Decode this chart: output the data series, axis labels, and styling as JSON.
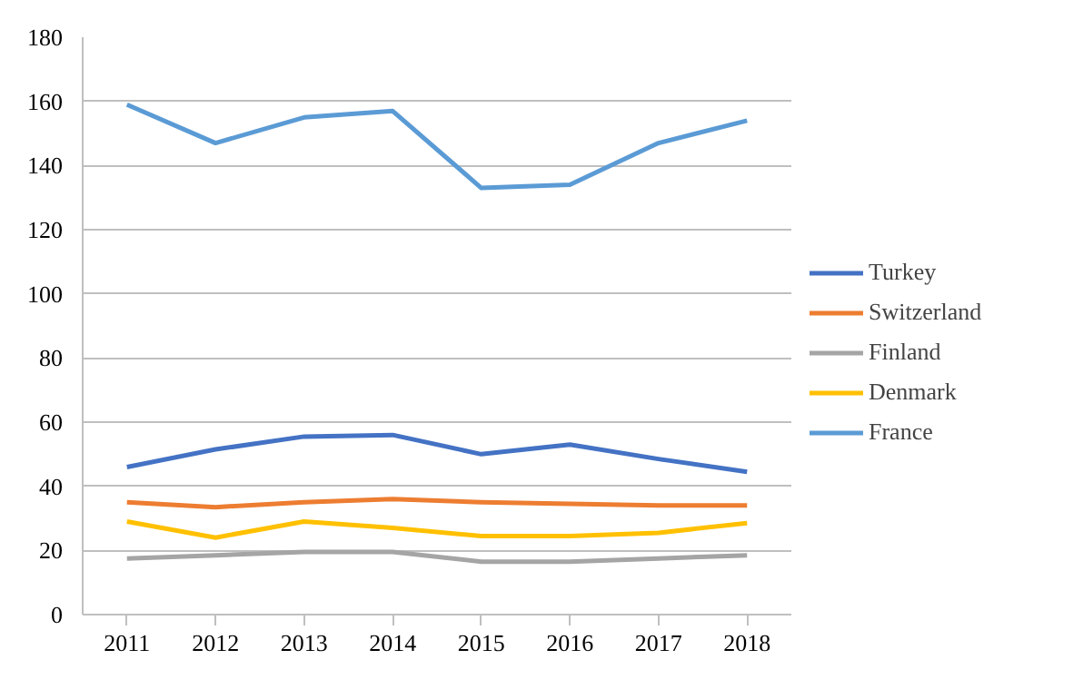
{
  "chart_data": {
    "type": "line",
    "categories": [
      "2011",
      "2012",
      "2013",
      "2014",
      "2015",
      "2016",
      "2017",
      "2018"
    ],
    "ylim": [
      0,
      180
    ],
    "yticks": [
      0,
      20,
      40,
      60,
      80,
      100,
      120,
      140,
      160,
      180
    ],
    "grid": "y",
    "legend": "right",
    "series": [
      {
        "name": "Turkey",
        "color": "#4472c4",
        "values": [
          46,
          51.5,
          55.5,
          56,
          50,
          53,
          48.5,
          44.5
        ]
      },
      {
        "name": "Switzerland",
        "color": "#ed7d31",
        "values": [
          35,
          33.5,
          35,
          36,
          35,
          34.5,
          34,
          34
        ]
      },
      {
        "name": "Finland",
        "color": "#a5a5a5",
        "values": [
          17.5,
          18.5,
          19.5,
          19.5,
          16.5,
          16.5,
          17.5,
          18.5
        ]
      },
      {
        "name": "Denmark",
        "color": "#ffc000",
        "values": [
          29,
          24,
          29,
          27,
          24.5,
          24.5,
          25.5,
          28.5
        ]
      },
      {
        "name": "France",
        "color": "#5b9bd5",
        "values": [
          159,
          147,
          155,
          157,
          133,
          134,
          147,
          154
        ]
      }
    ]
  }
}
